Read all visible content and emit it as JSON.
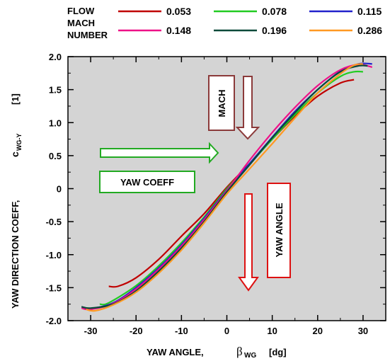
{
  "legend": {
    "title_lines": [
      "FLOW",
      "MACH",
      "NUMBER"
    ]
  },
  "chart_data": {
    "type": "line",
    "xlabel": "YAW  ANGLE,",
    "xlabel_symbol": "β",
    "xlabel_subscript": "WG",
    "xlabel_unit": "[dg]",
    "ylabel": "YAW  DIRECTION COEFF,",
    "ylabel_symbol": "c",
    "ylabel_subscript": "WG-Y",
    "ylabel_unit": "[1]",
    "xlim": [
      -35,
      35
    ],
    "ylim": [
      -2.0,
      2.0
    ],
    "x_ticks": [
      -30,
      -20,
      -10,
      0,
      10,
      20,
      30
    ],
    "y_ticks": [
      2.0,
      1.5,
      1.0,
      0.5,
      0,
      -0.5,
      -1.0,
      -1.5,
      -2.0
    ],
    "x_tick_labels": [
      "-30",
      "-20",
      "-10",
      "0",
      "10",
      "20",
      "30"
    ],
    "y_tick_labels": [
      "2.0",
      "1.5",
      "1.0",
      "0.5",
      "0",
      "-0.5",
      "-1.0",
      "-1.5",
      "-2.0"
    ],
    "plot_background": "#d4d4d4",
    "series": [
      {
        "name": "0.053",
        "color": "#c00000",
        "x": [
          -26,
          -24,
          -20,
          -15,
          -10,
          -5,
          0,
          5,
          10,
          15,
          20,
          25,
          28
        ],
        "y": [
          -1.48,
          -1.48,
          -1.35,
          -1.07,
          -0.72,
          -0.38,
          0.02,
          0.38,
          0.75,
          1.1,
          1.4,
          1.6,
          1.65
        ]
      },
      {
        "name": "0.078",
        "color": "#22cc22",
        "x": [
          -28,
          -26,
          -20,
          -15,
          -10,
          -5,
          0,
          5,
          10,
          15,
          20,
          25,
          28,
          30
        ],
        "y": [
          -1.75,
          -1.73,
          -1.47,
          -1.17,
          -0.82,
          -0.43,
          0.0,
          0.37,
          0.75,
          1.12,
          1.45,
          1.7,
          1.77,
          1.77
        ]
      },
      {
        "name": "0.115",
        "color": "#2222cc",
        "x": [
          -32,
          -30,
          -25,
          -20,
          -15,
          -10,
          -5,
          0,
          5,
          10,
          15,
          20,
          25,
          29,
          32
        ],
        "y": [
          -1.8,
          -1.82,
          -1.73,
          -1.5,
          -1.2,
          -0.85,
          -0.45,
          -0.02,
          0.38,
          0.78,
          1.17,
          1.5,
          1.78,
          1.89,
          1.89
        ]
      },
      {
        "name": "0.148",
        "color": "#ee1188",
        "x": [
          -32,
          -30,
          -25,
          -20,
          -15,
          -10,
          -5,
          0,
          5,
          10,
          15,
          20,
          25,
          29,
          32
        ],
        "y": [
          -1.81,
          -1.83,
          -1.74,
          -1.52,
          -1.22,
          -0.87,
          -0.47,
          -0.03,
          0.43,
          0.85,
          1.23,
          1.56,
          1.8,
          1.88,
          1.84
        ]
      },
      {
        "name": "0.196",
        "color": "#0b4a3a",
        "x": [
          -32,
          -30,
          -25,
          -20,
          -15,
          -10,
          -5,
          0,
          5,
          10,
          15,
          20,
          25,
          29,
          31
        ],
        "y": [
          -1.79,
          -1.81,
          -1.75,
          -1.55,
          -1.25,
          -0.9,
          -0.5,
          -0.05,
          0.36,
          0.77,
          1.15,
          1.5,
          1.77,
          1.86,
          1.86
        ]
      },
      {
        "name": "0.286",
        "color": "#ff9922",
        "x": [
          -31,
          -29,
          -25,
          -20,
          -15,
          -10,
          -5,
          0,
          5,
          10,
          15,
          20,
          25,
          28,
          30
        ],
        "y": [
          -1.83,
          -1.85,
          -1.76,
          -1.57,
          -1.28,
          -0.93,
          -0.52,
          -0.08,
          0.3,
          0.68,
          1.07,
          1.45,
          1.74,
          1.87,
          1.89
        ]
      }
    ],
    "annotations": [
      {
        "text": "MACH",
        "color": "#8b3a3a"
      },
      {
        "text": "YAW  COEFF",
        "color": "#22aa22"
      },
      {
        "text": "YAW  ANGLE",
        "color": "#dd1111"
      }
    ]
  }
}
